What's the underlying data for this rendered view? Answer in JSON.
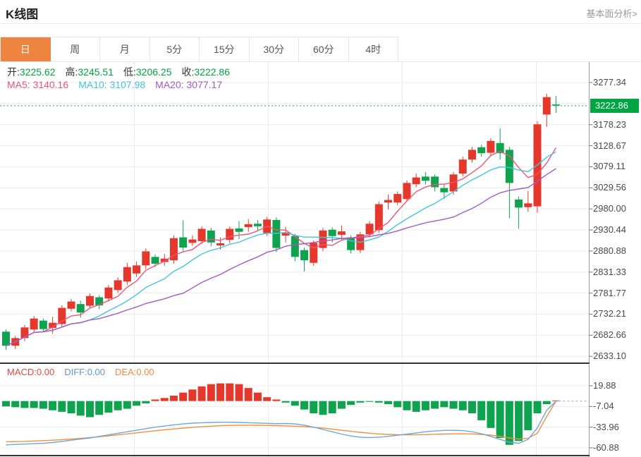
{
  "header": {
    "title": "K线图",
    "link_label": "基本面分析>"
  },
  "tabs": [
    {
      "key": "day",
      "label": "日",
      "active": true
    },
    {
      "key": "week",
      "label": "周",
      "active": false
    },
    {
      "key": "month",
      "label": "月",
      "active": false
    },
    {
      "key": "5min",
      "label": "5分",
      "active": false
    },
    {
      "key": "15min",
      "label": "15分",
      "active": false
    },
    {
      "key": "30min",
      "label": "30分",
      "active": false
    },
    {
      "key": "60min",
      "label": "60分",
      "active": false
    },
    {
      "key": "4hour",
      "label": "4时",
      "active": false
    }
  ],
  "ohlc_legend": [
    {
      "key": "open",
      "label": "开:",
      "value": "3225.62"
    },
    {
      "key": "high",
      "label": "高:",
      "value": "3245.51"
    },
    {
      "key": "low",
      "label": "低:",
      "value": "3206.25"
    },
    {
      "key": "close",
      "label": "收:",
      "value": "3222.86"
    }
  ],
  "ma_legend": [
    {
      "key": "ma5",
      "label": "MA5: ",
      "value": "3140.16",
      "color": "#ef5576"
    },
    {
      "key": "ma10",
      "label": "MA10: ",
      "value": "3107.98",
      "color": "#45c4de"
    },
    {
      "key": "ma20",
      "label": "MA20: ",
      "value": "3077.17",
      "color": "#a35ac5"
    }
  ],
  "macd_legend": [
    {
      "key": "macd",
      "label": "MACD:",
      "value": "0.00",
      "color": "#dc4840"
    },
    {
      "key": "diff",
      "label": "DIFF:",
      "value": "0.00",
      "color": "#5b96d9"
    },
    {
      "key": "dea",
      "label": "DEA:",
      "value": "0.00",
      "color": "#ef8b3c"
    }
  ],
  "colors": {
    "up": "#e4382d",
    "down": "#0fa34f",
    "value_green": "#00a443",
    "ma5": "#ef5576",
    "ma10": "#45c4de",
    "ma20": "#a35ac5",
    "diff_line": "#6ea6df",
    "dea_line": "#f0903f",
    "price_dotted": "#79ca9a",
    "badge_bg": "#00a443",
    "grid": "#ebebeb",
    "axis": "#9a9a9a",
    "tab_active": "#ef8440",
    "macd_current_dash": "#a3c9ea"
  },
  "chart_data": {
    "type": "candlestick",
    "title": "K线图",
    "main": {
      "ylim": [
        2633.1,
        3277.34
      ],
      "y_ticks_shown": [
        3277.34,
        3178.23,
        3128.67,
        3079.11,
        3029.56,
        2980.0,
        2930.44,
        2880.88,
        2831.33,
        2781.77,
        2732.21,
        2682.66,
        2633.1
      ],
      "grid_rows": 13,
      "current_price": 3222.86,
      "ohlc": {
        "open": 3225.62,
        "high": 3245.51,
        "low": 3206.25,
        "close": 3222.86
      },
      "ma_values": {
        "ma5": 3140.16,
        "ma10": 3107.98,
        "ma20": 3077.17
      },
      "candles_ochl_note": "each candle = [open, close, low, high]; close>open drawn red (up), close<open green (down)",
      "candles": [
        [
          2691,
          2658,
          2648,
          2696
        ],
        [
          2658,
          2676,
          2650,
          2681
        ],
        [
          2676,
          2701,
          2669,
          2707
        ],
        [
          2696,
          2722,
          2689,
          2728
        ],
        [
          2717,
          2697,
          2690,
          2722
        ],
        [
          2700,
          2712,
          2686,
          2726
        ],
        [
          2709,
          2747,
          2701,
          2753
        ],
        [
          2745,
          2762,
          2739,
          2768
        ],
        [
          2756,
          2736,
          2724,
          2764
        ],
        [
          2752,
          2775,
          2746,
          2781
        ],
        [
          2772,
          2753,
          2744,
          2777
        ],
        [
          2769,
          2795,
          2762,
          2801
        ],
        [
          2789,
          2812,
          2782,
          2819
        ],
        [
          2809,
          2843,
          2801,
          2853
        ],
        [
          2828,
          2847,
          2820,
          2856
        ],
        [
          2847,
          2880,
          2839,
          2887
        ],
        [
          2867,
          2851,
          2843,
          2873
        ],
        [
          2855,
          2863,
          2846,
          2874
        ],
        [
          2859,
          2911,
          2851,
          2918
        ],
        [
          2913,
          2889,
          2881,
          2953
        ],
        [
          2900,
          2908,
          2893,
          2918
        ],
        [
          2904,
          2933,
          2897,
          2939
        ],
        [
          2929,
          2901,
          2892,
          2935
        ],
        [
          2894,
          2899,
          2884,
          2913
        ],
        [
          2907,
          2933,
          2899,
          2939
        ],
        [
          2934,
          2926,
          2909,
          2951
        ],
        [
          2937,
          2944,
          2926,
          2956
        ],
        [
          2945,
          2939,
          2929,
          2954
        ],
        [
          2923,
          2955,
          2916,
          2961
        ],
        [
          2954,
          2888,
          2878,
          2960
        ],
        [
          2917,
          2925,
          2901,
          2938
        ],
        [
          2916,
          2867,
          2857,
          2921
        ],
        [
          2883,
          2859,
          2833,
          2889
        ],
        [
          2853,
          2900,
          2846,
          2906
        ],
        [
          2888,
          2929,
          2881,
          2935
        ],
        [
          2931,
          2916,
          2901,
          2937
        ],
        [
          2919,
          2927,
          2906,
          2941
        ],
        [
          2913,
          2883,
          2875,
          2918
        ],
        [
          2883,
          2920,
          2876,
          2926
        ],
        [
          2920,
          2945,
          2913,
          2951
        ],
        [
          2930,
          2991,
          2923,
          2997
        ],
        [
          2995,
          3001,
          2979,
          3014
        ],
        [
          2995,
          3015,
          2989,
          3021
        ],
        [
          3003,
          3041,
          2997,
          3047
        ],
        [
          3038,
          3054,
          3031,
          3063
        ],
        [
          3056,
          3046,
          3037,
          3067
        ],
        [
          3056,
          3031,
          3021,
          3061
        ],
        [
          3029,
          3019,
          3003,
          3037
        ],
        [
          3021,
          3061,
          3013,
          3067
        ],
        [
          3063,
          3096,
          3056,
          3103
        ],
        [
          3096,
          3119,
          3089,
          3126
        ],
        [
          3125,
          3111,
          3103,
          3131
        ],
        [
          3112,
          3140,
          3105,
          3146
        ],
        [
          3135,
          3111,
          3096,
          3170
        ],
        [
          3119,
          3041,
          2958,
          3126
        ],
        [
          3002,
          2983,
          2933,
          3009
        ],
        [
          2984,
          2993,
          2973,
          3022
        ],
        [
          2986,
          3179,
          2971,
          3186
        ],
        [
          3202,
          3243,
          3173,
          3251
        ],
        [
          3225.62,
          3222.86,
          3206.25,
          3245.51
        ]
      ]
    },
    "macd": {
      "ylim": [
        -60.88,
        19.88
      ],
      "y_ticks_shown": [
        19.88,
        -7.04,
        -33.96,
        -60.88
      ],
      "current_values": {
        "macd": 0.0,
        "diff": 0.0,
        "dea": 0.0
      },
      "hist": [
        -7,
        -8,
        -9,
        -9,
        -10,
        -12,
        -14,
        -16,
        -19,
        -21,
        -18,
        -15,
        -12,
        -10,
        -6,
        -3,
        2,
        4,
        7,
        11,
        15,
        19,
        22,
        23,
        23,
        22,
        17,
        11,
        5,
        2,
        -2,
        -6,
        -11,
        -16,
        -18,
        -16,
        -10,
        -5,
        -2,
        -1,
        -2,
        -4,
        -8,
        -12,
        -14,
        -12,
        -10,
        -8,
        -10,
        -12,
        -16,
        -25,
        -35,
        -48,
        -57,
        -52,
        -38,
        -16,
        -4,
        0.8
      ],
      "diff": [
        -57,
        -56.5,
        -56,
        -55.5,
        -55,
        -54,
        -52.5,
        -51,
        -49.5,
        -48,
        -46,
        -44,
        -42,
        -40,
        -38,
        -36,
        -34,
        -32.5,
        -31,
        -29.8,
        -28.8,
        -28.2,
        -27.8,
        -27.6,
        -27.6,
        -27.8,
        -28.2,
        -28.6,
        -29,
        -29.4,
        -29.2,
        -29.8,
        -31.5,
        -34,
        -37,
        -40,
        -43,
        -45.5,
        -47,
        -47.5,
        -47,
        -46,
        -44.5,
        -43,
        -41.5,
        -40,
        -39,
        -38.2,
        -38,
        -38.5,
        -40,
        -42.5,
        -46,
        -50,
        -53.5,
        -55,
        -50,
        -35,
        -12,
        0
      ],
      "dea": [
        -53,
        -52.8,
        -52.5,
        -52,
        -51.5,
        -51,
        -50.3,
        -49.5,
        -48.6,
        -47.6,
        -46.5,
        -45.3,
        -44,
        -42.7,
        -41.4,
        -40,
        -38.7,
        -37.5,
        -36.3,
        -35.2,
        -34.2,
        -33.4,
        -32.7,
        -32.1,
        -31.7,
        -31.5,
        -31.4,
        -31.5,
        -31.7,
        -32,
        -32.3,
        -32.7,
        -33.3,
        -34.2,
        -35.3,
        -36.6,
        -38,
        -39.4,
        -40.7,
        -41.9,
        -42.8,
        -43.4,
        -43.8,
        -43.9,
        -43.8,
        -43.6,
        -43.3,
        -43,
        -42.7,
        -42.6,
        -42.8,
        -43.4,
        -44.4,
        -46,
        -48,
        -49.5,
        -48.5,
        -42,
        -20,
        0
      ]
    }
  }
}
